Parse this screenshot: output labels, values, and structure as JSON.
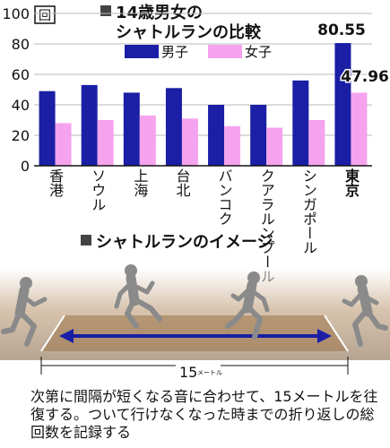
{
  "chart_data": {
    "type": "bar",
    "title_lines": [
      "14歳男女の",
      "シャトルランの比較"
    ],
    "unit": "回",
    "categories": [
      "香港",
      "ソウル",
      "上海",
      "台北",
      "バンコク",
      "クアラルンプール",
      "シンガポール",
      "東京"
    ],
    "series": [
      {
        "name": "男子",
        "color": "#1a1fa6",
        "values": [
          49,
          53,
          48,
          51,
          40,
          40,
          56,
          80.55
        ]
      },
      {
        "name": "女子",
        "color": "#f5a3ee",
        "values": [
          28,
          30,
          33,
          31,
          26,
          25,
          30,
          47.96
        ]
      }
    ],
    "data_labels": {
      "boys": "80.55",
      "girls": "47.96"
    },
    "highlight_category": "東京",
    "ylim": [
      0,
      100
    ],
    "yticks": [
      "0",
      "20",
      "40",
      "60",
      "80",
      "100"
    ],
    "grid": true,
    "legend_position": "top"
  },
  "illustration": {
    "title": "シャトルランのイメージ",
    "distance_number": "15",
    "distance_unit": "メートル",
    "track_color": "#8a6a45",
    "arrow_color": "#1a1fa6",
    "runner_color": "#888888"
  },
  "caption": "次第に間隔が短くなる音に合わせて、15メートルを往復する。ついて行けなくなった時までの折り返しの総回数を記録する"
}
